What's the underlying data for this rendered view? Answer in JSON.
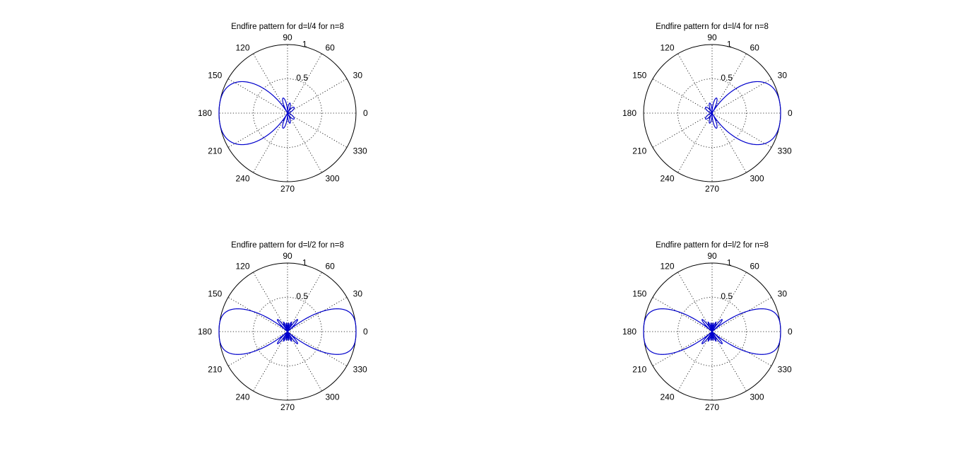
{
  "chart_data": [
    {
      "type": "polar",
      "title": "Endfire pattern for d=l/4 for n=8",
      "element_count": 8,
      "spacing_wavelengths": 0.25,
      "main_lobe_deg": 180,
      "r_ticks": [
        0.5,
        1
      ],
      "theta_ticks": [
        0,
        30,
        60,
        90,
        120,
        150,
        180,
        210,
        240,
        270,
        300,
        330
      ],
      "rlim": [
        0,
        1
      ],
      "grid": true,
      "series": [
        {
          "color": "#0000cc"
        }
      ]
    },
    {
      "type": "polar",
      "title": "Endfire pattern for d=l/4 for n=8",
      "element_count": 8,
      "spacing_wavelengths": 0.25,
      "main_lobe_deg": 0,
      "r_ticks": [
        0.5,
        1
      ],
      "theta_ticks": [
        0,
        30,
        60,
        90,
        120,
        150,
        180,
        210,
        240,
        270,
        300,
        330
      ],
      "rlim": [
        0,
        1
      ],
      "grid": true,
      "series": [
        {
          "color": "#0000cc"
        }
      ]
    },
    {
      "type": "polar",
      "title": "Endfire pattern for d=l/2 for n=8",
      "element_count": 8,
      "spacing_wavelengths": 0.5,
      "main_lobe_deg": 180,
      "r_ticks": [
        0.5,
        1
      ],
      "theta_ticks": [
        0,
        30,
        60,
        90,
        120,
        150,
        180,
        210,
        240,
        270,
        300,
        330
      ],
      "rlim": [
        0,
        1
      ],
      "grid": true,
      "series": [
        {
          "color": "#0000cc"
        }
      ]
    },
    {
      "type": "polar",
      "title": "Endfire pattern for d=l/2 for n=8",
      "element_count": 8,
      "spacing_wavelengths": 0.5,
      "main_lobe_deg": 0,
      "r_ticks": [
        0.5,
        1
      ],
      "theta_ticks": [
        0,
        30,
        60,
        90,
        120,
        150,
        180,
        210,
        240,
        270,
        300,
        330
      ],
      "rlim": [
        0,
        1
      ],
      "grid": true,
      "series": [
        {
          "color": "#0000cc"
        }
      ]
    }
  ]
}
